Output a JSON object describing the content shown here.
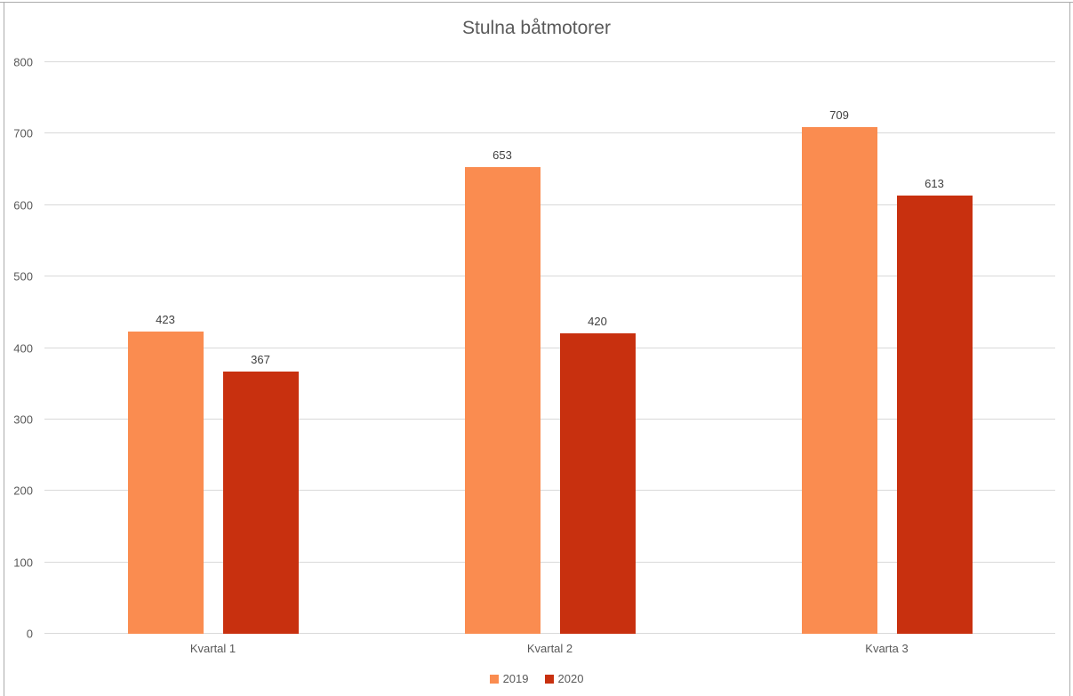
{
  "window": {
    "background": "#FFFFFF",
    "frame_color": "#ABABAB"
  },
  "chart_data": {
    "type": "bar",
    "title": "Stulna båtmotorer",
    "categories": [
      "Kvartal 1",
      "Kvartal 2",
      "Kvarta 3"
    ],
    "series": [
      {
        "name": "2019",
        "color": "#FA8C50",
        "values": [
          423,
          653,
          709
        ]
      },
      {
        "name": "2020",
        "color": "#C8300F",
        "values": [
          367,
          420,
          613
        ]
      }
    ],
    "ylim": [
      0,
      800
    ],
    "yticks": [
      0,
      100,
      200,
      300,
      400,
      500,
      600,
      700,
      800
    ],
    "grid": "horizontal",
    "gridline_color": "#D9D9D9",
    "legend_position": "bottom",
    "title_color": "#595959",
    "axis_label_color": "#595959",
    "value_label_color": "#404040"
  }
}
